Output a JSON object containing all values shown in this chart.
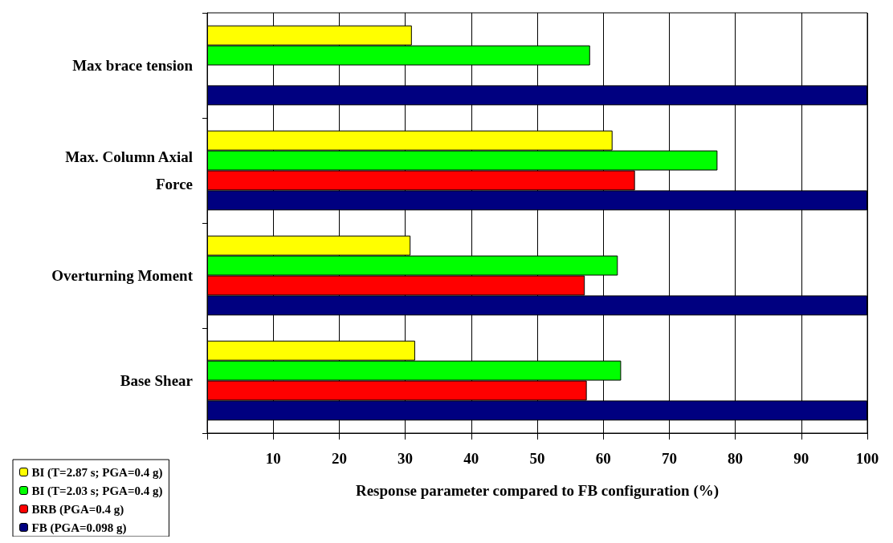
{
  "chart_data": {
    "type": "bar",
    "orientation": "horizontal",
    "xlabel": "Response parameter compared to FB configuration (%)",
    "categories": [
      "Max brace tension",
      "Max. Column Axial Force",
      "Overturning Moment",
      "Base Shear"
    ],
    "series": [
      {
        "name": "BI (T=2.87 s; PGA=0.4 g)",
        "color": "#ffff00",
        "values": [
          31.0,
          61.4,
          30.8,
          31.5
        ]
      },
      {
        "name": "BI (T=2.03 s; PGA=0.4 g)",
        "color": "#00ff00",
        "values": [
          58.0,
          77.3,
          62.2,
          62.7
        ]
      },
      {
        "name": "BRB (PGA=0.4 g)",
        "color": "#ff0000",
        "values": [
          null,
          64.8,
          57.2,
          57.5
        ]
      },
      {
        "name": "FB (PGA=0.098 g)",
        "color": "#000080",
        "values": [
          100,
          100,
          100,
          100
        ]
      }
    ],
    "xlim": [
      0,
      100
    ],
    "xticks": [
      {
        "value": 0,
        "label": null
      },
      10,
      20,
      30,
      40,
      50,
      60,
      70,
      80,
      90,
      100
    ],
    "grid": "x",
    "legend": "bottom left"
  }
}
